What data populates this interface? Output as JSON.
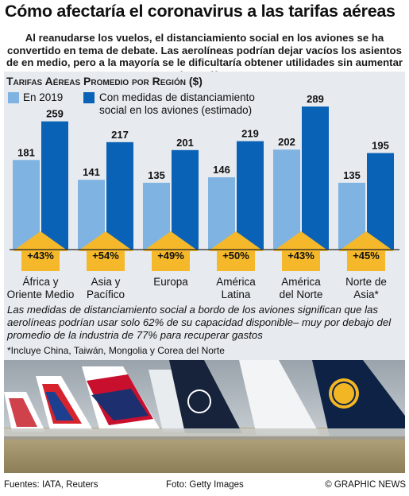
{
  "title": "Cómo afectaría el coronavirus a las tarifas aéreas",
  "intro": "Al reanudarse los vuelos, el distanciamiento social en los aviones se ha convertido en tema de debate. Las aerolíneas podrían dejar vacíos los asientos de en medio, pero a la mayoría se le dificultaría obtener utilidades sin aumentar las tarifas",
  "chart_data": {
    "type": "bar",
    "title_prefix": "Tarifas Aéreas Promedio por Región",
    "title_unit": "($)",
    "categories": [
      "África y Oriente Medio",
      "Asia y Pacífico",
      "Europa",
      "América Latina",
      "América del Norte",
      "Norte de Asia*"
    ],
    "category_lines": [
      [
        "África y",
        "Oriente Medio"
      ],
      [
        "Asia y",
        "Pacífico"
      ],
      [
        "Europa"
      ],
      [
        "América",
        "Latina"
      ],
      [
        "América",
        "del Norte"
      ],
      [
        "Norte de",
        "Asia*"
      ]
    ],
    "series": [
      {
        "name": "En 2019",
        "values": [
          181,
          141,
          135,
          146,
          202,
          135
        ]
      },
      {
        "name": "Con medidas de distanciamiento social en los aviones (estimado)",
        "values": [
          259,
          217,
          201,
          219,
          289,
          195
        ]
      }
    ],
    "legend": {
      "series1": "En 2019",
      "series2_line1": "Con medidas de distanciamiento",
      "series2_line2": "social en los aviones (estimado)"
    },
    "increase_labels": [
      "+43%",
      "+54%",
      "+49%",
      "+50%",
      "+43%",
      "+45%"
    ],
    "colors": {
      "series1": "#7fb3e2",
      "series2": "#0a62b6",
      "arrow": "#f5b82a",
      "panel": "#e7ebef"
    },
    "grid": false,
    "legend_position": "top-left"
  },
  "note": "Las medidas de distanciamiento social a bordo de los aviones significan que las aerolíneas podrían usar solo 62% de su capacidad disponible– muy por debajo del promedio de la industria de 77% para recuperar gastos",
  "footnote": "*Incluye China, Taiwán, Mongolia y Corea del Norte",
  "credits": {
    "sources": "Fuentes: IATA, Reuters",
    "photo": "Foto: Getty Images",
    "brand": "© GRAPHIC NEWS"
  }
}
